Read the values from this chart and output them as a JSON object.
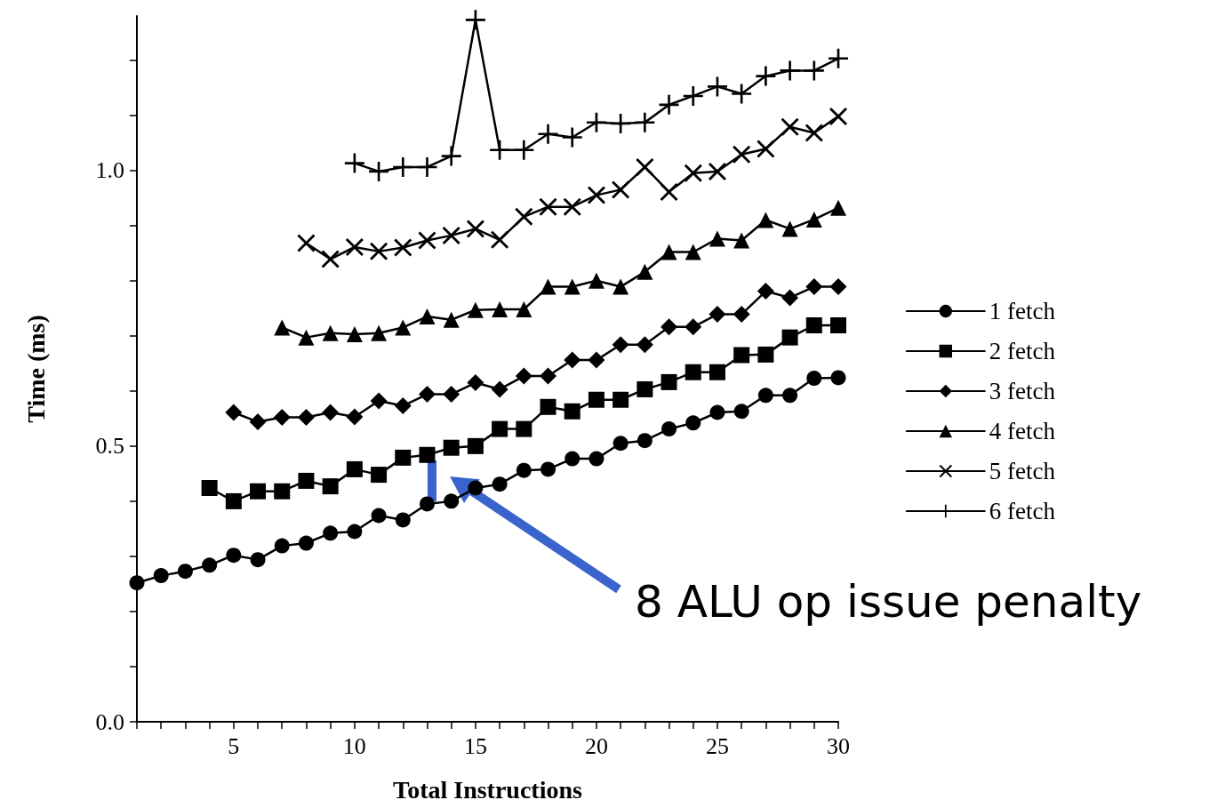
{
  "chart_data": {
    "type": "line",
    "xlabel": "Total Instructions",
    "ylabel": "Time (ms)",
    "xlim": [
      1,
      30
    ],
    "ylim": [
      0,
      1.28
    ],
    "xticks": [
      {
        "value": 1,
        "label": null
      },
      {
        "value": 2,
        "label": null
      },
      {
        "value": 3,
        "label": null
      },
      {
        "value": 4,
        "label": null
      },
      5,
      {
        "value": 6,
        "label": null
      },
      {
        "value": 7,
        "label": null
      },
      {
        "value": 8,
        "label": null
      },
      {
        "value": 9,
        "label": null
      },
      10,
      {
        "value": 11,
        "label": null
      },
      {
        "value": 12,
        "label": null
      },
      {
        "value": 13,
        "label": null
      },
      {
        "value": 14,
        "label": null
      },
      15,
      {
        "value": 16,
        "label": null
      },
      {
        "value": 17,
        "label": null
      },
      {
        "value": 18,
        "label": null
      },
      {
        "value": 19,
        "label": null
      },
      20,
      {
        "value": 21,
        "label": null
      },
      {
        "value": 22,
        "label": null
      },
      {
        "value": 23,
        "label": null
      },
      {
        "value": 24,
        "label": null
      },
      25,
      {
        "value": 26,
        "label": null
      },
      {
        "value": 27,
        "label": null
      },
      {
        "value": 28,
        "label": null
      },
      {
        "value": 29,
        "label": null
      },
      30
    ],
    "yticks": [
      {
        "value": 0,
        "label": "0.0"
      },
      {
        "value": 0.1,
        "label": null
      },
      {
        "value": 0.2,
        "label": null
      },
      {
        "value": 0.3,
        "label": null
      },
      {
        "value": 0.4,
        "label": null
      },
      {
        "value": 0.5,
        "label": "0.5"
      },
      {
        "value": 0.6,
        "label": null
      },
      {
        "value": 0.7,
        "label": null
      },
      {
        "value": 0.8,
        "label": null
      },
      {
        "value": 0.9,
        "label": null
      },
      {
        "value": 1.0,
        "label": "1.0"
      },
      {
        "value": 1.1,
        "label": null
      },
      {
        "value": 1.2,
        "label": null
      }
    ],
    "grid": false,
    "legend": "right",
    "line_style": "solid",
    "series": [
      {
        "name": "1 fetch",
        "color": "#000000",
        "marker": "circle",
        "x": [
          1,
          2,
          3,
          4,
          5,
          6,
          7,
          8,
          9,
          10,
          11,
          12,
          13,
          14,
          15,
          16,
          17,
          18,
          19,
          20,
          21,
          22,
          23,
          24,
          25,
          26,
          27,
          28,
          29,
          30
        ],
        "values": [
          0.252,
          0.265,
          0.273,
          0.284,
          0.302,
          0.294,
          0.319,
          0.324,
          0.342,
          0.345,
          0.374,
          0.366,
          0.395,
          0.4,
          0.424,
          0.431,
          0.456,
          0.458,
          0.477,
          0.477,
          0.505,
          0.51,
          0.531,
          0.542,
          0.561,
          0.563,
          0.592,
          0.592,
          0.623,
          0.624
        ]
      },
      {
        "name": "2 fetch",
        "color": "#000000",
        "marker": "square",
        "x": [
          4,
          5,
          6,
          7,
          8,
          9,
          10,
          11,
          12,
          13,
          14,
          15,
          16,
          17,
          18,
          19,
          20,
          21,
          22,
          23,
          24,
          25,
          26,
          27,
          28,
          29,
          30
        ],
        "values": [
          0.424,
          0.4,
          0.418,
          0.418,
          0.437,
          0.427,
          0.458,
          0.448,
          0.479,
          0.484,
          0.497,
          0.5,
          0.531,
          0.531,
          0.571,
          0.563,
          0.584,
          0.584,
          0.603,
          0.616,
          0.634,
          0.634,
          0.665,
          0.666,
          0.697,
          0.719,
          0.719
        ]
      },
      {
        "name": "3 fetch",
        "color": "#000000",
        "marker": "diamond",
        "x": [
          5,
          6,
          7,
          8,
          9,
          10,
          11,
          12,
          13,
          14,
          15,
          16,
          17,
          18,
          19,
          20,
          21,
          22,
          23,
          24,
          25,
          26,
          27,
          28,
          29,
          30
        ],
        "values": [
          0.561,
          0.544,
          0.552,
          0.552,
          0.561,
          0.553,
          0.582,
          0.573,
          0.594,
          0.594,
          0.615,
          0.603,
          0.627,
          0.627,
          0.656,
          0.656,
          0.684,
          0.684,
          0.716,
          0.716,
          0.739,
          0.739,
          0.781,
          0.769,
          0.789,
          0.789
        ]
      },
      {
        "name": "4 fetch",
        "color": "#000000",
        "marker": "triangle",
        "x": [
          7,
          8,
          9,
          10,
          11,
          12,
          13,
          14,
          15,
          16,
          17,
          18,
          19,
          20,
          21,
          22,
          23,
          24,
          25,
          26,
          27,
          28,
          29,
          30
        ],
        "values": [
          0.715,
          0.697,
          0.705,
          0.703,
          0.705,
          0.715,
          0.735,
          0.729,
          0.747,
          0.748,
          0.748,
          0.789,
          0.789,
          0.8,
          0.789,
          0.816,
          0.852,
          0.852,
          0.876,
          0.873,
          0.91,
          0.894,
          0.911,
          0.932
        ]
      },
      {
        "name": "5 fetch",
        "color": "#000000",
        "marker": "cross",
        "x": [
          8,
          9,
          10,
          11,
          12,
          13,
          14,
          15,
          16,
          17,
          18,
          19,
          20,
          21,
          22,
          23,
          24,
          25,
          26,
          27,
          28,
          29,
          30
        ],
        "values": [
          0.868,
          0.839,
          0.861,
          0.853,
          0.86,
          0.873,
          0.882,
          0.894,
          0.874,
          0.916,
          0.934,
          0.934,
          0.955,
          0.965,
          1.006,
          0.961,
          0.995,
          0.998,
          1.029,
          1.039,
          1.079,
          1.068,
          1.098
        ]
      },
      {
        "name": "6 fetch",
        "color": "#000000",
        "marker": "plus",
        "x": [
          10,
          11,
          12,
          13,
          14,
          15,
          16,
          17,
          18,
          19,
          20,
          21,
          22,
          23,
          24,
          25,
          26,
          27,
          28,
          29,
          30
        ],
        "values": [
          1.013,
          0.998,
          1.006,
          1.006,
          1.026,
          1.273,
          1.037,
          1.037,
          1.066,
          1.06,
          1.087,
          1.085,
          1.087,
          1.119,
          1.135,
          1.152,
          1.139,
          1.171,
          1.181,
          1.181,
          1.203
        ]
      }
    ],
    "annotations": [
      "8 ALU op issue penalty"
    ]
  }
}
